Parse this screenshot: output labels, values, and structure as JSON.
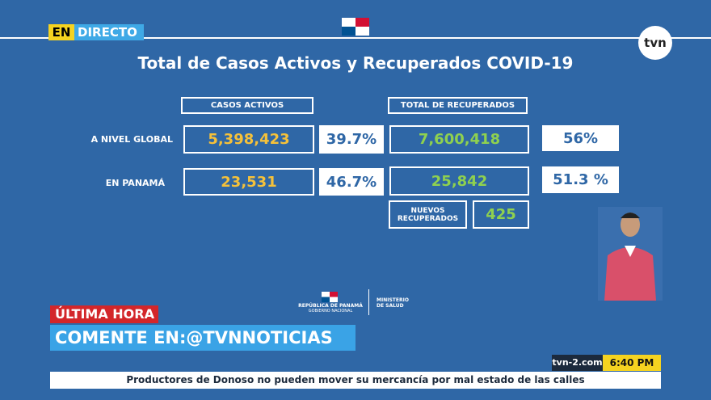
{
  "header": {
    "live_prefix": "EN",
    "live_label": "DIRECTO",
    "logo": "tvn"
  },
  "title": "Total de Casos Activos y Recuperados COVID-19",
  "table": {
    "headers": [
      "CASOS ACTIVOS",
      "TOTAL DE RECUPERADOS"
    ],
    "rows": [
      {
        "label": "A NIVEL GLOBAL",
        "active": "5,398,423",
        "active_pct": "39.7%",
        "recovered": "7,600,418",
        "recovered_pct": "56%"
      },
      {
        "label": "EN PANAMÁ",
        "active": "23,531",
        "active_pct": "46.7%",
        "recovered": "25,842",
        "recovered_pct": "51.3 %"
      }
    ],
    "new_recovered": {
      "label": "NUEVOS RECUPERADOS",
      "value": "425"
    }
  },
  "footer_logos": {
    "government": "REPÚBLICA DE PANAMÁ",
    "government_sub": "GOBIERNO NACIONAL",
    "ministry": "MINISTERIO DE SALUD"
  },
  "lower_third": {
    "tag": "ÚLTIMA HORA",
    "headline": "COMENTE EN:@TVNNOTICIAS",
    "site": "tvn-2.com",
    "time": "6:40 PM",
    "ticker": "Productores de Donoso no pueden mover su mercancía por mal estado de las calles"
  }
}
